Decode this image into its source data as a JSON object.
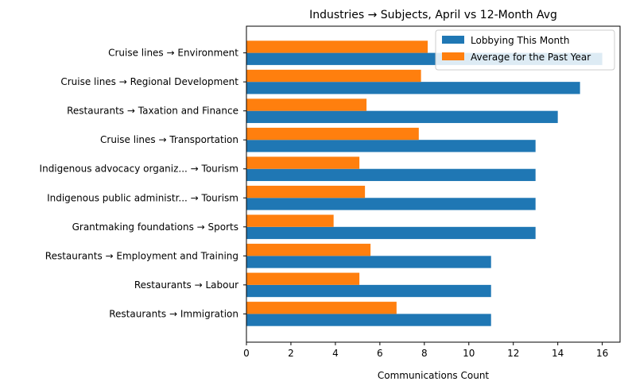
{
  "chart_data": {
    "type": "bar",
    "orientation": "horizontal",
    "title": "Industries → Subjects, April vs 12-Month Avg",
    "xlabel": "Communications Count",
    "ylabel": "",
    "xlim": [
      0,
      16.8
    ],
    "xticks": [
      0,
      2,
      4,
      6,
      8,
      10,
      12,
      14,
      16
    ],
    "grid": false,
    "legend_position": "top-right",
    "categories": [
      "Cruise lines → Environment",
      "Cruise lines → Regional Development",
      "Restaurants → Taxation and Finance",
      "Cruise lines → Transportation",
      "Indigenous advocacy organiz... → Tourism",
      "Indigenous public administr... → Tourism",
      "Grantmaking foundations → Sports",
      "Restaurants → Employment and Training",
      "Restaurants → Labour",
      "Restaurants → Immigration"
    ],
    "series": [
      {
        "name": "Lobbying This Month",
        "color": "#1f77b4",
        "values": [
          16,
          15,
          14,
          13,
          13,
          13,
          13,
          11,
          11,
          11
        ]
      },
      {
        "name": "Average for the Past Year",
        "color": "#ff7f0e",
        "values": [
          8.15,
          7.85,
          5.4,
          7.75,
          5.08,
          5.33,
          3.92,
          5.58,
          5.08,
          6.75
        ]
      }
    ]
  }
}
